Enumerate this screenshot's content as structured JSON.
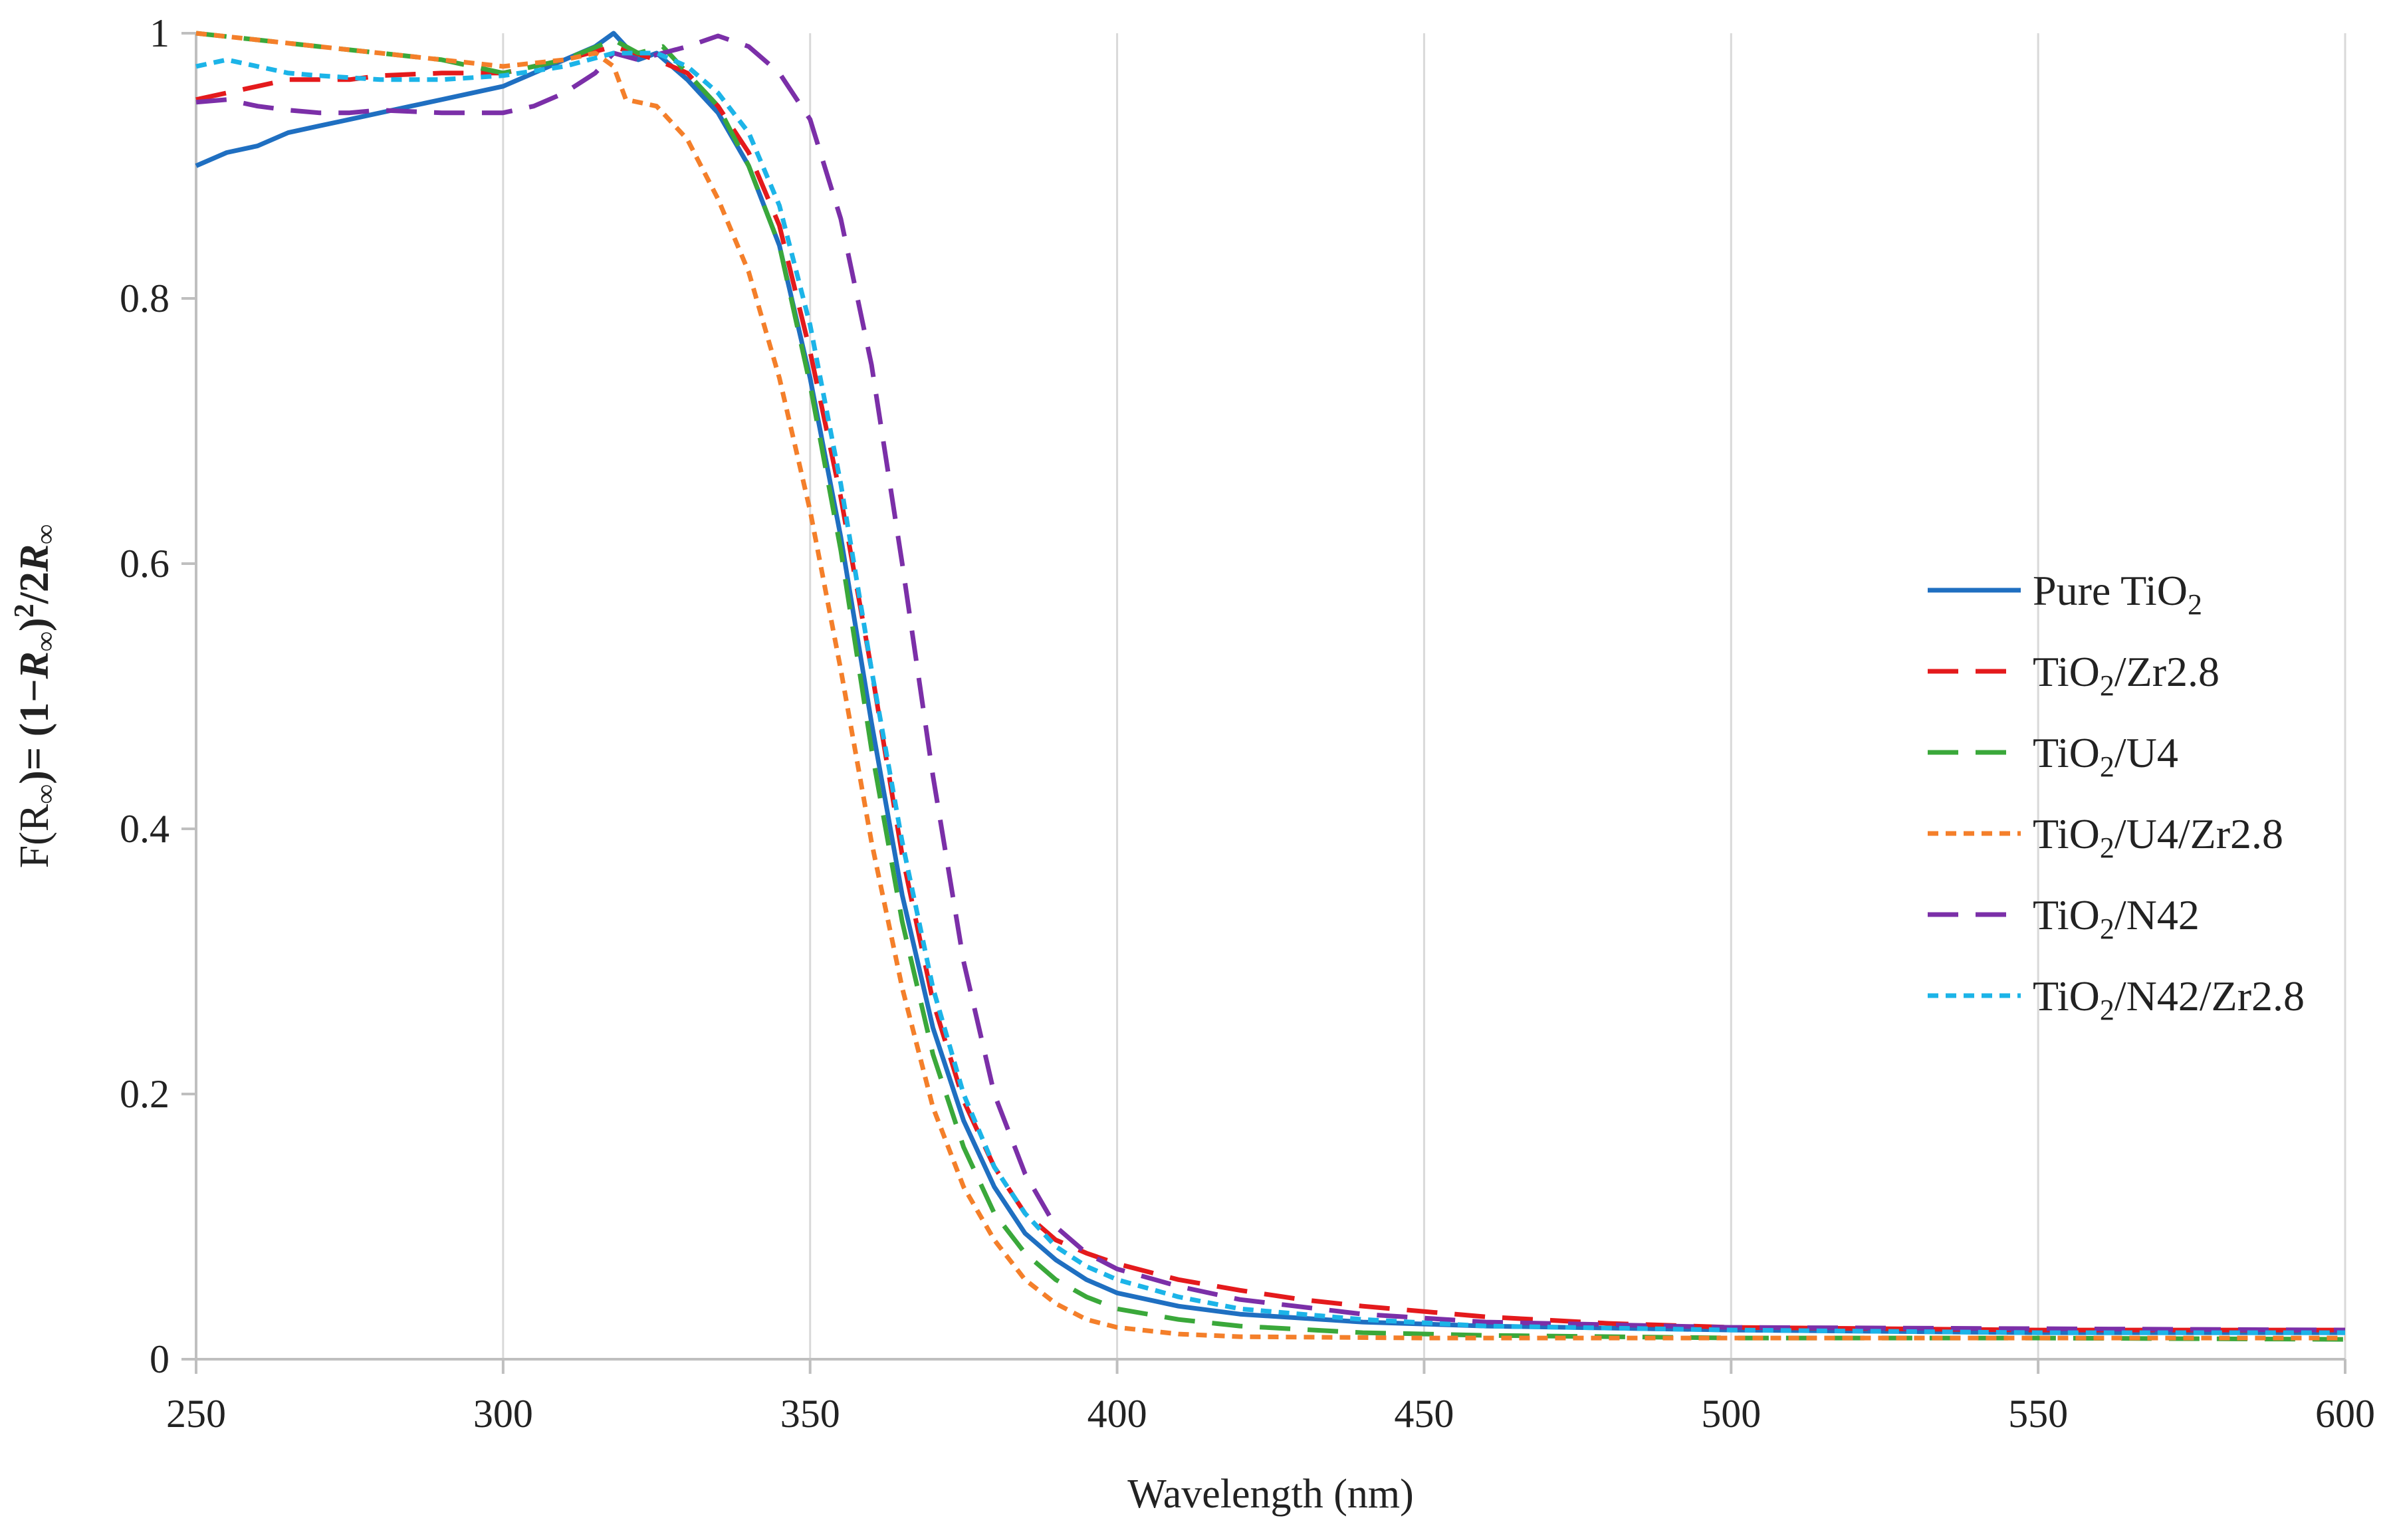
{
  "chart_data": {
    "type": "line",
    "title": "",
    "xlabel": "Wavelength  (nm)",
    "ylabel": {
      "prefix": "F(R",
      "sub1": "∞",
      "mid": ")= (1−",
      "r1": "R",
      "sub2": "∞",
      "close": ")",
      "sup": "2",
      "slash": "/2",
      "r2": "R",
      "sub3": "∞"
    },
    "xlim": [
      250,
      600
    ],
    "ylim": [
      0,
      1
    ],
    "xticks": [
      250,
      300,
      350,
      400,
      450,
      500,
      550,
      600
    ],
    "xtick_labels": [
      "250",
      "300",
      "350",
      "400",
      "450",
      "500",
      "550",
      "600"
    ],
    "yticks": [
      0,
      0.2,
      0.4,
      0.6,
      0.8,
      1
    ],
    "ytick_labels": [
      "0",
      "0.2",
      "0.4",
      "0.6",
      "0.8",
      "1"
    ],
    "grid": "vertical",
    "legend_position": "right",
    "series": [
      {
        "name": "Pure TiO2",
        "label_main": "Pure TiO",
        "label_sub": "2",
        "label_rest": "",
        "color": "#1f6fc1",
        "dash": "solid",
        "points": [
          [
            250,
            0.9
          ],
          [
            255,
            0.91
          ],
          [
            260,
            0.915
          ],
          [
            265,
            0.925
          ],
          [
            270,
            0.93
          ],
          [
            275,
            0.935
          ],
          [
            280,
            0.94
          ],
          [
            285,
            0.945
          ],
          [
            290,
            0.95
          ],
          [
            295,
            0.955
          ],
          [
            300,
            0.96
          ],
          [
            305,
            0.97
          ],
          [
            310,
            0.98
          ],
          [
            315,
            0.99
          ],
          [
            318,
            1.0
          ],
          [
            322,
            0.98
          ],
          [
            325,
            0.985
          ],
          [
            330,
            0.965
          ],
          [
            335,
            0.94
          ],
          [
            340,
            0.9
          ],
          [
            345,
            0.84
          ],
          [
            350,
            0.74
          ],
          [
            355,
            0.62
          ],
          [
            360,
            0.48
          ],
          [
            365,
            0.35
          ],
          [
            370,
            0.25
          ],
          [
            375,
            0.18
          ],
          [
            380,
            0.13
          ],
          [
            385,
            0.095
          ],
          [
            390,
            0.075
          ],
          [
            395,
            0.06
          ],
          [
            400,
            0.05
          ],
          [
            410,
            0.04
          ],
          [
            420,
            0.034
          ],
          [
            440,
            0.028
          ],
          [
            460,
            0.025
          ],
          [
            500,
            0.022
          ],
          [
            550,
            0.02
          ],
          [
            600,
            0.02
          ]
        ]
      },
      {
        "name": "TiO2/Zr2.8",
        "label_main": "TiO",
        "label_sub": "2",
        "label_rest": "/Zr2.8",
        "color": "#e41a1c",
        "dash": "long",
        "points": [
          [
            250,
            0.95
          ],
          [
            255,
            0.955
          ],
          [
            260,
            0.96
          ],
          [
            265,
            0.965
          ],
          [
            270,
            0.965
          ],
          [
            275,
            0.965
          ],
          [
            280,
            0.968
          ],
          [
            290,
            0.97
          ],
          [
            300,
            0.97
          ],
          [
            310,
            0.98
          ],
          [
            318,
            0.99
          ],
          [
            325,
            0.98
          ],
          [
            330,
            0.97
          ],
          [
            335,
            0.945
          ],
          [
            340,
            0.91
          ],
          [
            345,
            0.855
          ],
          [
            350,
            0.76
          ],
          [
            355,
            0.65
          ],
          [
            360,
            0.52
          ],
          [
            365,
            0.38
          ],
          [
            370,
            0.27
          ],
          [
            375,
            0.195
          ],
          [
            380,
            0.145
          ],
          [
            385,
            0.11
          ],
          [
            390,
            0.09
          ],
          [
            395,
            0.08
          ],
          [
            400,
            0.072
          ],
          [
            410,
            0.06
          ],
          [
            420,
            0.052
          ],
          [
            430,
            0.045
          ],
          [
            440,
            0.04
          ],
          [
            460,
            0.032
          ],
          [
            480,
            0.027
          ],
          [
            500,
            0.024
          ],
          [
            550,
            0.022
          ],
          [
            600,
            0.022
          ]
        ]
      },
      {
        "name": "TiO2/U4",
        "label_main": "TiO",
        "label_sub": "2",
        "label_rest": "/U4",
        "color": "#3aa83a",
        "dash": "long",
        "points": [
          [
            250,
            1.0
          ],
          [
            260,
            0.995
          ],
          [
            270,
            0.99
          ],
          [
            280,
            0.985
          ],
          [
            290,
            0.98
          ],
          [
            300,
            0.97
          ],
          [
            310,
            0.98
          ],
          [
            318,
            0.995
          ],
          [
            322,
            0.985
          ],
          [
            326,
            0.99
          ],
          [
            330,
            0.97
          ],
          [
            335,
            0.945
          ],
          [
            340,
            0.9
          ],
          [
            345,
            0.84
          ],
          [
            350,
            0.735
          ],
          [
            355,
            0.61
          ],
          [
            360,
            0.46
          ],
          [
            365,
            0.33
          ],
          [
            370,
            0.23
          ],
          [
            375,
            0.16
          ],
          [
            380,
            0.11
          ],
          [
            385,
            0.08
          ],
          [
            390,
            0.06
          ],
          [
            395,
            0.047
          ],
          [
            400,
            0.038
          ],
          [
            410,
            0.03
          ],
          [
            420,
            0.025
          ],
          [
            440,
            0.02
          ],
          [
            460,
            0.018
          ],
          [
            500,
            0.016
          ],
          [
            550,
            0.016
          ],
          [
            600,
            0.015
          ]
        ]
      },
      {
        "name": "TiO2/U4/Zr2.8",
        "label_main": "TiO",
        "label_sub": "2",
        "label_rest": "/U4/Zr2.8",
        "color": "#f47f2a",
        "dash": "short",
        "points": [
          [
            250,
            1.0
          ],
          [
            260,
            0.995
          ],
          [
            270,
            0.99
          ],
          [
            280,
            0.985
          ],
          [
            290,
            0.98
          ],
          [
            300,
            0.975
          ],
          [
            310,
            0.98
          ],
          [
            315,
            0.985
          ],
          [
            318,
            0.975
          ],
          [
            320,
            0.95
          ],
          [
            325,
            0.945
          ],
          [
            330,
            0.92
          ],
          [
            335,
            0.875
          ],
          [
            340,
            0.82
          ],
          [
            345,
            0.74
          ],
          [
            350,
            0.64
          ],
          [
            355,
            0.52
          ],
          [
            360,
            0.39
          ],
          [
            365,
            0.28
          ],
          [
            370,
            0.19
          ],
          [
            375,
            0.13
          ],
          [
            380,
            0.09
          ],
          [
            385,
            0.06
          ],
          [
            390,
            0.042
          ],
          [
            395,
            0.03
          ],
          [
            400,
            0.024
          ],
          [
            410,
            0.019
          ],
          [
            420,
            0.017
          ],
          [
            450,
            0.016
          ],
          [
            500,
            0.016
          ],
          [
            550,
            0.016
          ],
          [
            600,
            0.016
          ]
        ]
      },
      {
        "name": "TiO2/N42",
        "label_main": "TiO",
        "label_sub": "2",
        "label_rest": "/N42",
        "color": "#7b2fa8",
        "dash": "long",
        "points": [
          [
            250,
            0.948
          ],
          [
            255,
            0.95
          ],
          [
            260,
            0.945
          ],
          [
            265,
            0.942
          ],
          [
            270,
            0.94
          ],
          [
            275,
            0.94
          ],
          [
            280,
            0.942
          ],
          [
            290,
            0.94
          ],
          [
            300,
            0.94
          ],
          [
            305,
            0.945
          ],
          [
            310,
            0.955
          ],
          [
            315,
            0.97
          ],
          [
            318,
            0.985
          ],
          [
            322,
            0.98
          ],
          [
            326,
            0.985
          ],
          [
            330,
            0.99
          ],
          [
            335,
            0.998
          ],
          [
            340,
            0.99
          ],
          [
            345,
            0.97
          ],
          [
            350,
            0.935
          ],
          [
            355,
            0.86
          ],
          [
            360,
            0.75
          ],
          [
            365,
            0.6
          ],
          [
            370,
            0.44
          ],
          [
            375,
            0.3
          ],
          [
            380,
            0.2
          ],
          [
            385,
            0.14
          ],
          [
            390,
            0.1
          ],
          [
            395,
            0.08
          ],
          [
            400,
            0.068
          ],
          [
            410,
            0.055
          ],
          [
            420,
            0.045
          ],
          [
            440,
            0.034
          ],
          [
            460,
            0.028
          ],
          [
            500,
            0.024
          ],
          [
            550,
            0.023
          ],
          [
            600,
            0.022
          ]
        ]
      },
      {
        "name": "TiO2/N42/Zr2.8",
        "label_main": "TiO",
        "label_sub": "2",
        "label_rest": "/N42/Zr2.8",
        "color": "#1cb4e8",
        "dash": "short",
        "points": [
          [
            250,
            0.975
          ],
          [
            255,
            0.98
          ],
          [
            260,
            0.975
          ],
          [
            265,
            0.97
          ],
          [
            270,
            0.968
          ],
          [
            280,
            0.965
          ],
          [
            290,
            0.965
          ],
          [
            300,
            0.968
          ],
          [
            310,
            0.975
          ],
          [
            318,
            0.985
          ],
          [
            325,
            0.985
          ],
          [
            330,
            0.975
          ],
          [
            335,
            0.955
          ],
          [
            340,
            0.925
          ],
          [
            345,
            0.87
          ],
          [
            350,
            0.78
          ],
          [
            355,
            0.66
          ],
          [
            360,
            0.52
          ],
          [
            365,
            0.39
          ],
          [
            370,
            0.28
          ],
          [
            375,
            0.2
          ],
          [
            380,
            0.145
          ],
          [
            385,
            0.11
          ],
          [
            390,
            0.085
          ],
          [
            395,
            0.07
          ],
          [
            400,
            0.06
          ],
          [
            410,
            0.047
          ],
          [
            420,
            0.038
          ],
          [
            440,
            0.03
          ],
          [
            460,
            0.025
          ],
          [
            500,
            0.022
          ],
          [
            550,
            0.02
          ],
          [
            600,
            0.02
          ]
        ]
      }
    ]
  }
}
